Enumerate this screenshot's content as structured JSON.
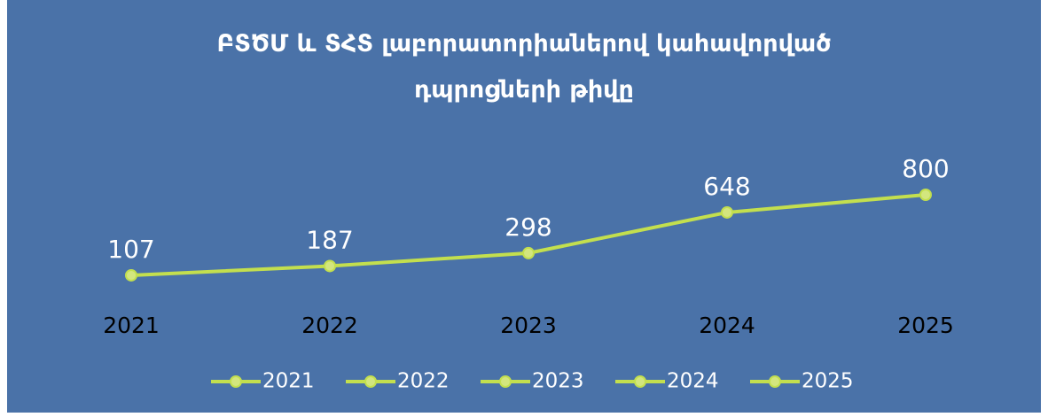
{
  "chart_data": {
    "type": "line",
    "title": "ԲՏԾՄ և ՏՀՏ լաբորատորիաներով կահավորված դպրոցների թիվը",
    "categories": [
      "2021",
      "2022",
      "2023",
      "2024",
      "2025"
    ],
    "values": [
      107,
      187,
      298,
      648,
      800
    ],
    "color": "#c3df4e",
    "ylim": [
      0,
      800
    ]
  }
}
